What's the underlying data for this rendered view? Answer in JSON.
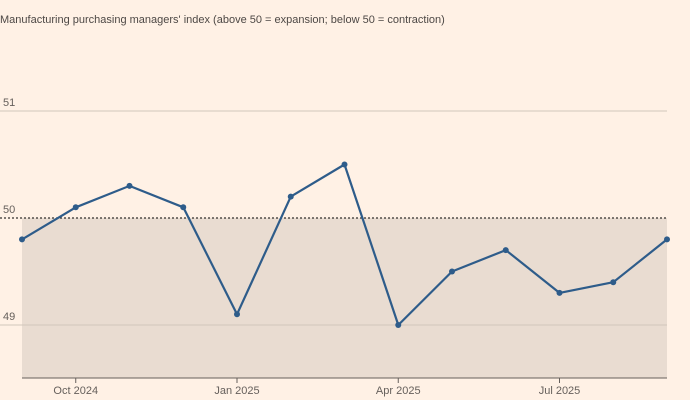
{
  "chart_data": {
    "type": "line",
    "title": "Manufacturing purchasing managers' index (above 50 = expansion; below 50 = contraction)",
    "xlabel": "",
    "ylabel": "",
    "x": [
      "2024-09",
      "2024-10",
      "2024-11",
      "2024-12",
      "2025-01",
      "2025-02",
      "2025-03",
      "2025-04",
      "2025-05",
      "2025-06",
      "2025-07",
      "2025-08",
      "2025-09"
    ],
    "series": [
      {
        "name": "",
        "values": [
          49.8,
          50.1,
          50.3,
          50.1,
          49.1,
          50.2,
          50.5,
          49.0,
          49.5,
          49.7,
          49.3,
          49.4,
          49.8
        ]
      }
    ],
    "ylim": [
      48.5,
      51
    ],
    "yticks": [
      "49",
      "50",
      "51"
    ],
    "xticks": [
      {
        "label": "Oct 2024",
        "x": "2024-10"
      },
      {
        "label": "Jan 2025",
        "x": "2025-01"
      },
      {
        "label": "Apr 2025",
        "x": "2025-04"
      },
      {
        "label": "Jul 2025",
        "x": "2025-07"
      }
    ],
    "reference_line": 50,
    "grid": true,
    "legend": "none",
    "colors": {
      "line": "#2E5C8A",
      "below_fill": "#E9DCD1",
      "grid": "#D1C6BC",
      "reference": "#33302E",
      "background": "#FFF1E5",
      "text": "#66605C"
    }
  }
}
